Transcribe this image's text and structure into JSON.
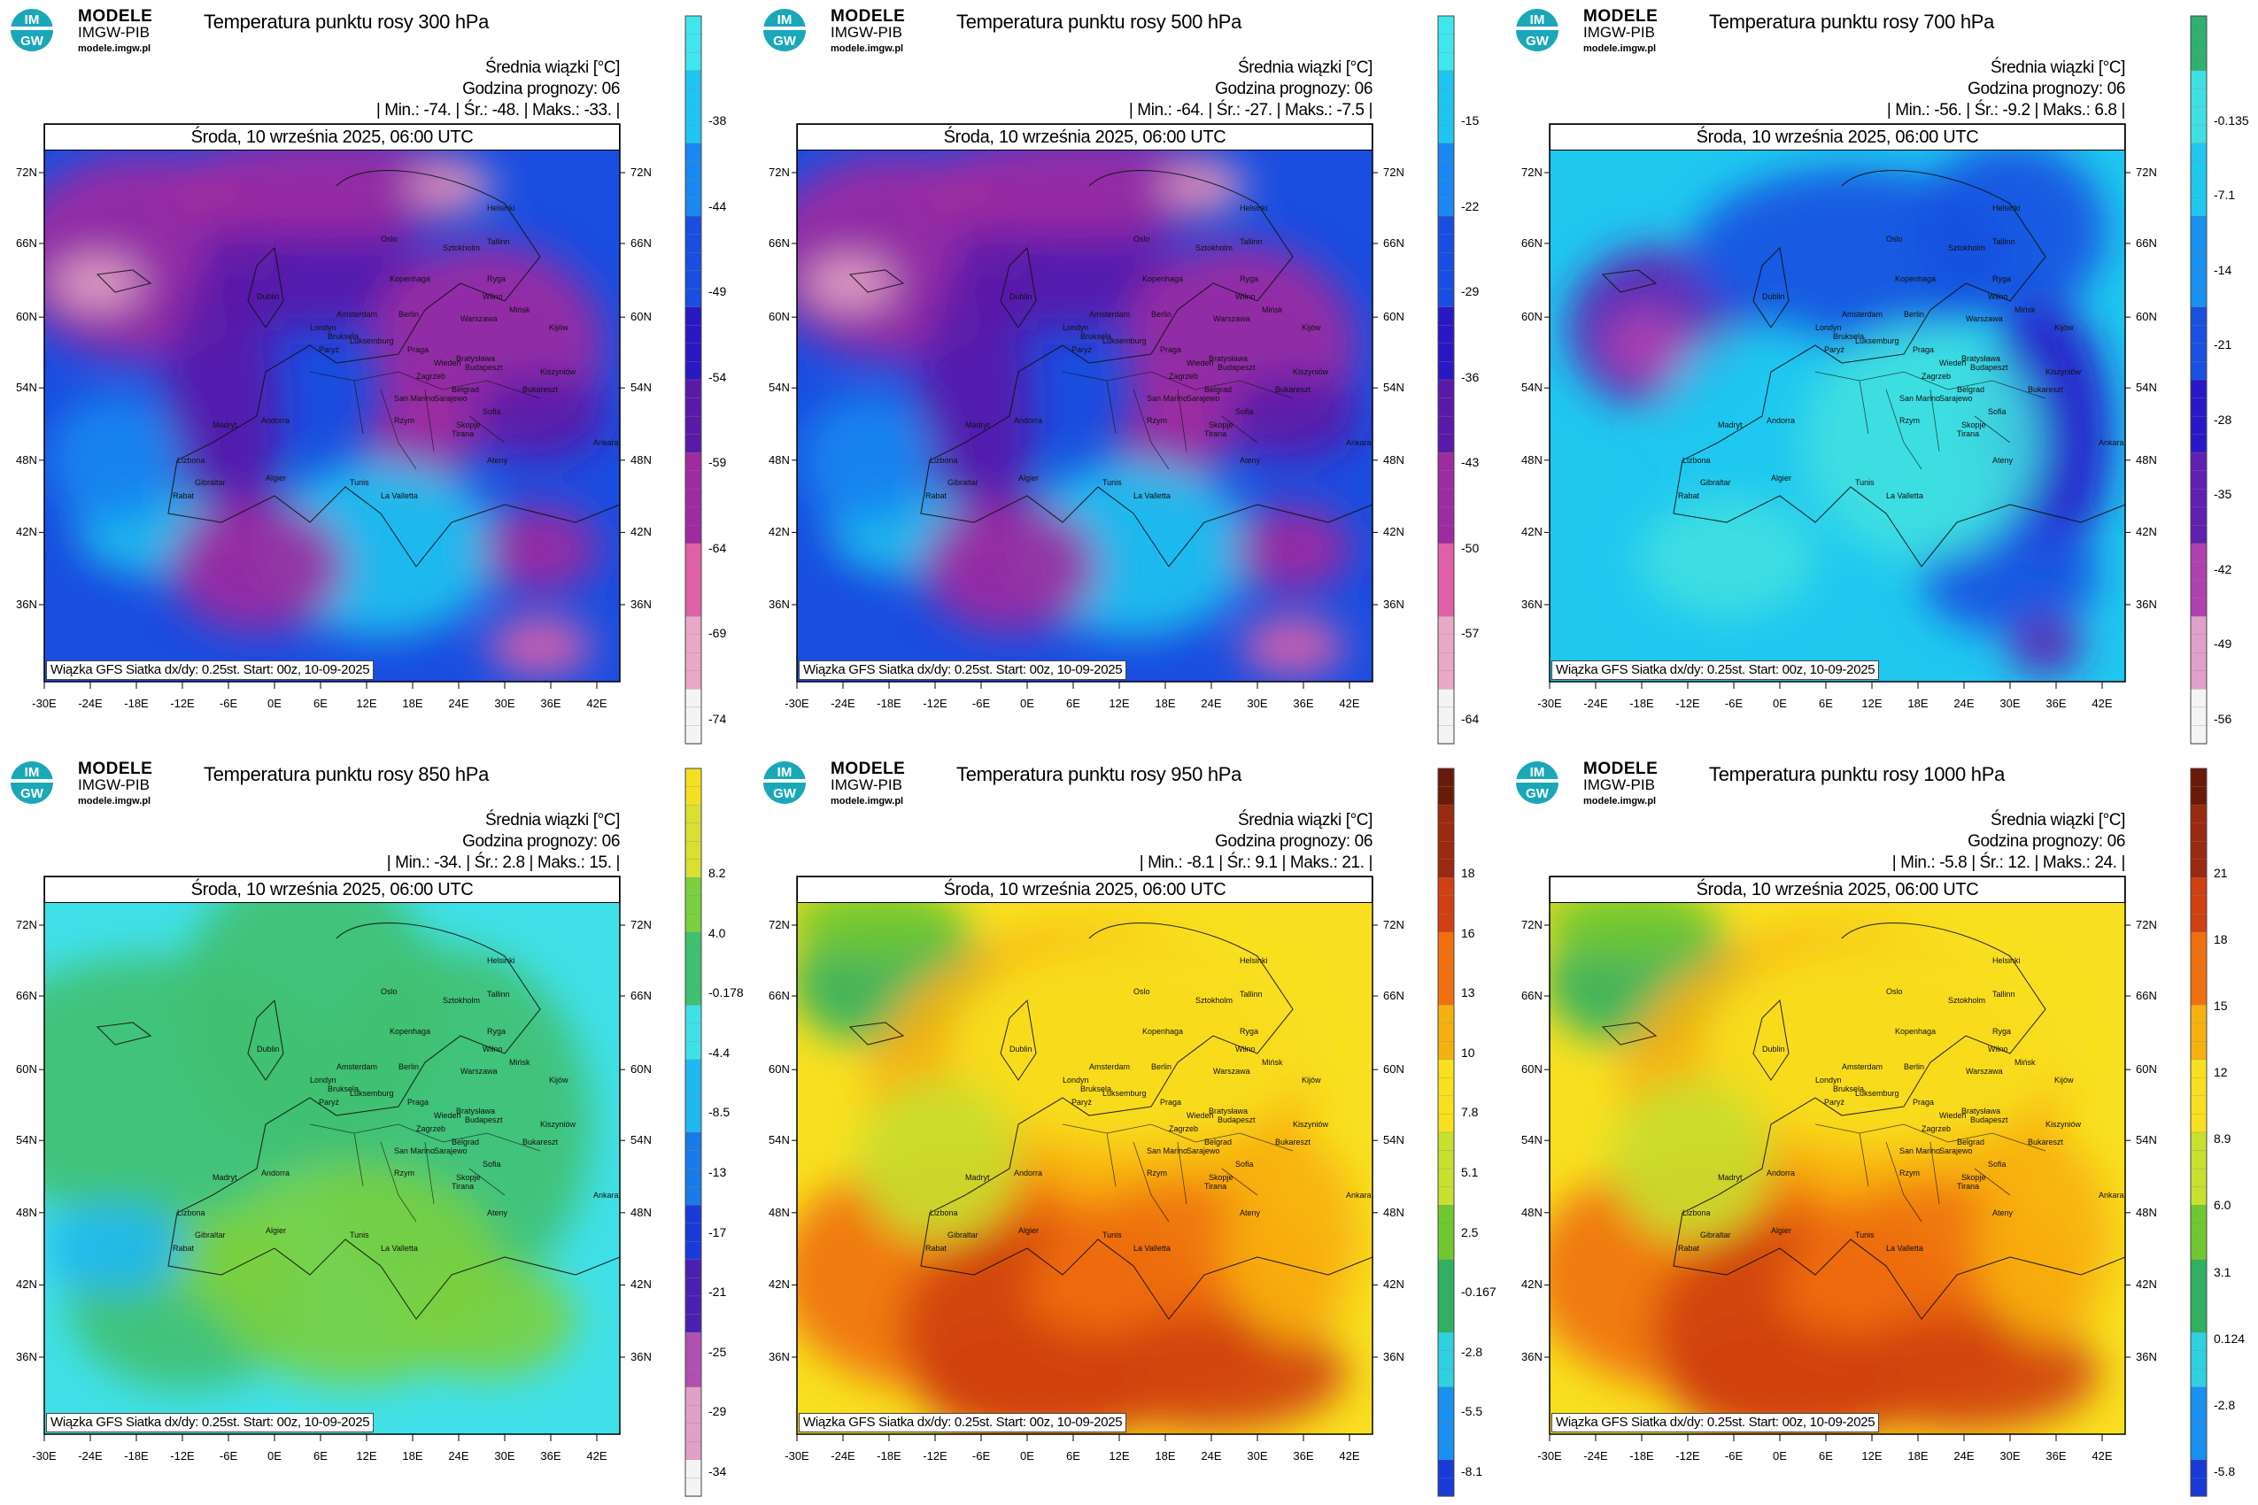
{
  "panels": [
    {
      "logo": {
        "line1": "MODELE",
        "line2": "IMGW-PIB",
        "line3": "modele.imgw.pl",
        "mark_top": "IM",
        "mark_bottom": "GW"
      },
      "title": "Temperatura punktu rosy 300 hPa",
      "meta_line1": "Średnia wiązki [°C]",
      "meta_line2": "Godzina prognozy: 06",
      "meta_line3": "| Min.:   -74. | Śr.:   -48. | Maks.:   -33. |",
      "date": "Środa, 10 września 2025, 06:00 UTC",
      "footer": "Wiązka GFS Siatka dx/dy: 0.25st. Start: 00z, 10-09-2025",
      "colorbar_ticks": [
        "-38",
        "-44",
        "-49",
        "-54",
        "-59",
        "-64",
        "-69",
        "-74"
      ],
      "scheme": "dry"
    },
    {
      "logo": {
        "line1": "MODELE",
        "line2": "IMGW-PIB",
        "line3": "modele.imgw.pl",
        "mark_top": "IM",
        "mark_bottom": "GW"
      },
      "title": "Temperatura punktu rosy 500 hPa",
      "meta_line1": "Średnia wiązki [°C]",
      "meta_line2": "Godzina prognozy: 06",
      "meta_line3": "| Min.:   -64. | Śr.:   -27. | Maks.:   -7.5 |",
      "date": "Środa, 10 września 2025, 06:00 UTC",
      "footer": "Wiązka GFS Siatka dx/dy: 0.25st. Start: 00z, 10-09-2025",
      "colorbar_ticks": [
        "-15",
        "-22",
        "-29",
        "-36",
        "-43",
        "-50",
        "-57",
        "-64"
      ],
      "scheme": "dry"
    },
    {
      "logo": {
        "line1": "MODELE",
        "line2": "IMGW-PIB",
        "line3": "modele.imgw.pl",
        "mark_top": "IM",
        "mark_bottom": "GW"
      },
      "title": "Temperatura punktu rosy 700 hPa",
      "meta_line1": "Średnia wiązki [°C]",
      "meta_line2": "Godzina prognozy: 06",
      "meta_line3": "| Min.:   -56. | Śr.:   -9.2 | Maks.:   6.8 |",
      "date": "Środa, 10 września 2025, 06:00 UTC",
      "footer": "Wiązka GFS Siatka dx/dy: 0.25st. Start: 00z, 10-09-2025",
      "colorbar_ticks": [
        "-0.135",
        "-7.1",
        "-14",
        "-21",
        "-28",
        "-35",
        "-42",
        "-49",
        "-56"
      ],
      "scheme": "mid"
    },
    {
      "logo": {
        "line1": "MODELE",
        "line2": "IMGW-PIB",
        "line3": "modele.imgw.pl",
        "mark_top": "IM",
        "mark_bottom": "GW"
      },
      "title": "Temperatura punktu rosy 850 hPa",
      "meta_line1": "Średnia wiązki [°C]",
      "meta_line2": "Godzina prognozy: 06",
      "meta_line3": "| Min.:   -34. | Śr.:   2.8 | Maks.:   15. |",
      "date": "Środa, 10 września 2025, 06:00 UTC",
      "footer": "Wiązka GFS Siatka dx/dy: 0.25st. Start: 00z, 10-09-2025",
      "colorbar_ticks": [
        "8.2",
        "4.0",
        "-0.178",
        "-4.4",
        "-8.5",
        "-13",
        "-17",
        "-21",
        "-25",
        "-29",
        "-34"
      ],
      "scheme": "moist"
    },
    {
      "logo": {
        "line1": "MODELE",
        "line2": "IMGW-PIB",
        "line3": "modele.imgw.pl",
        "mark_top": "IM",
        "mark_bottom": "GW"
      },
      "title": "Temperatura punktu rosy 950 hPa",
      "meta_line1": "Średnia wiązki [°C]",
      "meta_line2": "Godzina prognozy: 06",
      "meta_line3": "| Min.:   -8.1 | Śr.:   9.1 | Maks.:   21. |",
      "date": "Środa, 10 września 2025, 06:00 UTC",
      "footer": "Wiązka GFS Siatka dx/dy: 0.25st. Start: 00z, 10-09-2025",
      "colorbar_ticks": [
        "18",
        "16",
        "13",
        "10",
        "7.8",
        "5.1",
        "2.5",
        "-0.167",
        "-2.8",
        "-5.5",
        "-8.1"
      ],
      "scheme": "warm"
    },
    {
      "logo": {
        "line1": "MODELE",
        "line2": "IMGW-PIB",
        "line3": "modele.imgw.pl",
        "mark_top": "IM",
        "mark_bottom": "GW"
      },
      "title": "Temperatura punktu rosy 1000 hPa",
      "meta_line1": "Średnia wiązki [°C]",
      "meta_line2": "Godzina prognozy: 06",
      "meta_line3": "| Min.:   -5.8 | Śr.:   12. | Maks.:   24. |",
      "date": "Środa, 10 września 2025, 06:00 UTC",
      "footer": "Wiązka GFS Siatka dx/dy: 0.25st. Start: 00z, 10-09-2025",
      "colorbar_ticks": [
        "21",
        "18",
        "15",
        "12",
        "8.9",
        "6.0",
        "3.1",
        "0.124",
        "-2.8",
        "-5.8"
      ],
      "scheme": "warm"
    }
  ],
  "lat_labels": [
    "72N",
    "66N",
    "60N",
    "54N",
    "48N",
    "42N",
    "36N"
  ],
  "lon_labels": [
    "-30E",
    "-24E",
    "-18E",
    "-12E",
    "-6E",
    "0E",
    "6E",
    "12E",
    "18E",
    "24E",
    "30E",
    "36E",
    "42E"
  ],
  "cities": [
    "Helsinki",
    "Oslo",
    "Sztokholm",
    "Tallinn",
    "Ryga",
    "Kopenhaga",
    "Wilno",
    "Mińsk",
    "Dublin",
    "Amsterdam",
    "Berlin",
    "Warszawa",
    "Kijów",
    "Londyn",
    "Bruksela",
    "Luksemburg",
    "Paryż",
    "Praga",
    "Wiedeń",
    "Bratysława",
    "Budapeszt",
    "Kiszyniów",
    "Zagrzeb",
    "Belgrad",
    "Bukareszt",
    "Sarajewo",
    "San Marino",
    "Andorra",
    "Madryt",
    "Rzym",
    "Sofia",
    "Skopje",
    "Tirana",
    "Ankara",
    "Lizbona",
    "Ateny",
    "Gibraltar",
    "Algier",
    "Tunis",
    "La Valletta",
    "Rabat"
  ],
  "colors": {
    "dry": [
      "#f4f4f4",
      "#e9a9c6",
      "#e060a8",
      "#a02aa0",
      "#5a1aa8",
      "#2a18c0",
      "#1a4ee0",
      "#1a88f0",
      "#20c4f0",
      "#40e6ee"
    ],
    "mid": [
      "#f4f4f4",
      "#e0a0c8",
      "#b040b0",
      "#6020b0",
      "#2a18c8",
      "#1a50e0",
      "#1a90f0",
      "#20c8f0",
      "#40e0e0",
      "#30b070"
    ],
    "moist": [
      "#f4f4f4",
      "#e0a0c8",
      "#b050b0",
      "#4a20b0",
      "#1a3ad8",
      "#1a7ae8",
      "#20b8f0",
      "#40e0e8",
      "#40c070",
      "#7ad040",
      "#d8e030",
      "#f4e020"
    ],
    "warm": [
      "#1a3ad8",
      "#1a90f0",
      "#30d0e0",
      "#30b060",
      "#70c830",
      "#c8e030",
      "#f8e020",
      "#f8b010",
      "#f07010",
      "#d04010",
      "#9a2a10",
      "#6a1a08"
    ]
  }
}
